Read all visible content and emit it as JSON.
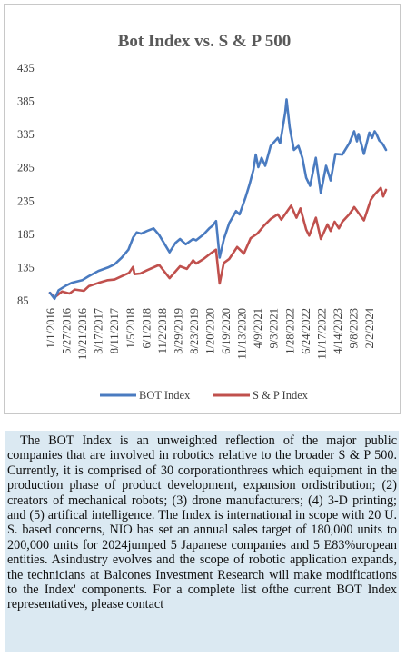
{
  "chart_data": {
    "type": "line",
    "title": "Bot Index vs. S & P 500",
    "xlabel": "",
    "ylabel": "",
    "ylim": [
      85,
      435
    ],
    "yticks": [
      85,
      135,
      185,
      235,
      285,
      335,
      385,
      435
    ],
    "xlim": [
      "2016-01-01",
      "2024-05-15"
    ],
    "x_tick_labels": [
      "1/1/2016",
      "5/27/2016",
      "10/21/2016",
      "3/17/2017",
      "8/11/2017",
      "1/5/2018",
      "6/1/2018",
      "11/2/2018",
      "3/29/2019",
      "8/23/2019",
      "1/20/2020",
      "6/19/2020",
      "11/13/2020",
      "4/9/2021",
      "9/3/2021",
      "1/28/2022",
      "6/24/2022",
      "11/17/2022",
      "4/14/2023",
      "9/8/2023",
      "2/2/2024"
    ],
    "grid": false,
    "legend": "bottom",
    "series": [
      {
        "name": "BOT Index",
        "color": "#4a7bc0",
        "points": [
          [
            "2016-01-01",
            97
          ],
          [
            "2016-02-12",
            88
          ],
          [
            "2016-03-20",
            101
          ],
          [
            "2016-05-27",
            108
          ],
          [
            "2016-07-15",
            112
          ],
          [
            "2016-10-21",
            116
          ],
          [
            "2016-12-20",
            122
          ],
          [
            "2017-03-17",
            130
          ],
          [
            "2017-06-10",
            135
          ],
          [
            "2017-08-11",
            140
          ],
          [
            "2017-10-15",
            150
          ],
          [
            "2017-12-15",
            162
          ],
          [
            "2018-01-26",
            180
          ],
          [
            "2018-03-01",
            188
          ],
          [
            "2018-04-10",
            186
          ],
          [
            "2018-06-01",
            190
          ],
          [
            "2018-08-01",
            194
          ],
          [
            "2018-09-20",
            184
          ],
          [
            "2018-12-24",
            158
          ],
          [
            "2019-02-15",
            172
          ],
          [
            "2019-03-29",
            178
          ],
          [
            "2019-05-20",
            170
          ],
          [
            "2019-07-25",
            178
          ],
          [
            "2019-08-23",
            176
          ],
          [
            "2019-10-30",
            185
          ],
          [
            "2019-12-20",
            194
          ],
          [
            "2020-01-20",
            198
          ],
          [
            "2020-02-20",
            205
          ],
          [
            "2020-03-23",
            150
          ],
          [
            "2020-05-01",
            178
          ],
          [
            "2020-06-19",
            202
          ],
          [
            "2020-08-20",
            220
          ],
          [
            "2020-09-20",
            215
          ],
          [
            "2020-11-13",
            240
          ],
          [
            "2020-12-20",
            260
          ],
          [
            "2021-01-25",
            282
          ],
          [
            "2021-02-15",
            305
          ],
          [
            "2021-03-10",
            286
          ],
          [
            "2021-04-09",
            300
          ],
          [
            "2021-05-12",
            288
          ],
          [
            "2021-07-01",
            318
          ],
          [
            "2021-09-03",
            330
          ],
          [
            "2021-09-25",
            322
          ],
          [
            "2021-11-10",
            368
          ],
          [
            "2021-11-22",
            388
          ],
          [
            "2021-12-20",
            346
          ],
          [
            "2022-01-28",
            312
          ],
          [
            "2022-03-10",
            318
          ],
          [
            "2022-04-15",
            300
          ],
          [
            "2022-05-20",
            270
          ],
          [
            "2022-06-24",
            258
          ],
          [
            "2022-08-15",
            300
          ],
          [
            "2022-09-30",
            247
          ],
          [
            "2022-11-17",
            288
          ],
          [
            "2022-12-28",
            266
          ],
          [
            "2023-02-10",
            306
          ],
          [
            "2023-04-14",
            305
          ],
          [
            "2023-06-15",
            322
          ],
          [
            "2023-07-30",
            340
          ],
          [
            "2023-08-25",
            325
          ],
          [
            "2023-09-08",
            336
          ],
          [
            "2023-10-27",
            306
          ],
          [
            "2023-12-15",
            338
          ],
          [
            "2024-01-10",
            330
          ],
          [
            "2024-02-02",
            340
          ],
          [
            "2024-02-20",
            335
          ],
          [
            "2024-03-15",
            326
          ],
          [
            "2024-04-10",
            322
          ],
          [
            "2024-04-25",
            318
          ],
          [
            "2024-05-15",
            312
          ]
        ]
      },
      {
        "name": "S & P Index",
        "color": "#c0504d",
        "points": [
          [
            "2016-01-01",
            97
          ],
          [
            "2016-02-12",
            90
          ],
          [
            "2016-04-20",
            99
          ],
          [
            "2016-06-27",
            96
          ],
          [
            "2016-08-15",
            102
          ],
          [
            "2016-11-04",
            100
          ],
          [
            "2016-12-20",
            107
          ],
          [
            "2017-03-17",
            112
          ],
          [
            "2017-06-10",
            116
          ],
          [
            "2017-08-11",
            117
          ],
          [
            "2017-10-15",
            122
          ],
          [
            "2017-12-20",
            127
          ],
          [
            "2018-01-26",
            136
          ],
          [
            "2018-02-08",
            125
          ],
          [
            "2018-04-01",
            126
          ],
          [
            "2018-06-01",
            131
          ],
          [
            "2018-09-20",
            139
          ],
          [
            "2018-12-24",
            119
          ],
          [
            "2019-03-29",
            137
          ],
          [
            "2019-05-31",
            133
          ],
          [
            "2019-07-26",
            146
          ],
          [
            "2019-08-23",
            141
          ],
          [
            "2019-10-30",
            148
          ],
          [
            "2019-12-30",
            156
          ],
          [
            "2020-02-19",
            162
          ],
          [
            "2020-03-23",
            111
          ],
          [
            "2020-04-30",
            142
          ],
          [
            "2020-06-19",
            148
          ],
          [
            "2020-08-30",
            166
          ],
          [
            "2020-10-30",
            156
          ],
          [
            "2020-12-30",
            179
          ],
          [
            "2021-03-01",
            186
          ],
          [
            "2021-05-01",
            198
          ],
          [
            "2021-07-01",
            208
          ],
          [
            "2021-09-03",
            215
          ],
          [
            "2021-10-05",
            207
          ],
          [
            "2022-01-03",
            228
          ],
          [
            "2022-02-20",
            210
          ],
          [
            "2022-03-29",
            224
          ],
          [
            "2022-05-20",
            192
          ],
          [
            "2022-06-16",
            183
          ],
          [
            "2022-08-16",
            210
          ],
          [
            "2022-09-30",
            178
          ],
          [
            "2022-11-30",
            200
          ],
          [
            "2022-12-28",
            190
          ],
          [
            "2023-02-02",
            204
          ],
          [
            "2023-03-13",
            194
          ],
          [
            "2023-04-14",
            204
          ],
          [
            "2023-06-15",
            215
          ],
          [
            "2023-07-31",
            226
          ],
          [
            "2023-10-27",
            206
          ],
          [
            "2023-12-29",
            237
          ],
          [
            "2024-02-02",
            245
          ],
          [
            "2024-03-28",
            255
          ],
          [
            "2024-04-19",
            242
          ],
          [
            "2024-05-15",
            252
          ]
        ]
      }
    ]
  },
  "description": "The BOT Index is an unweighted reflection of the major public companies that are involved in robotics relative to the broader S & P 500. Currently, it is comprised of 30 corporationthrees which equipment in the production phase of product development, expansion ordistribution; (2) creators of mechanical robots; (3) drone manufacturers; (4) 3-D printing; and (5) artifical intelligence. The Index is international in scope with 20 U. S. based concerns, NIO has set an annual sales target of 180,000 units to 200,000 units for 2024jumped 5 Japanese companies and 5 E83%uropean entities. Asindustry evolves and the scope of robotic application expands, the technicians at Balcones Investment Research will make modifications to the Index' components. For a  complete list ofthe current BOT Index representatives, please contact"
}
